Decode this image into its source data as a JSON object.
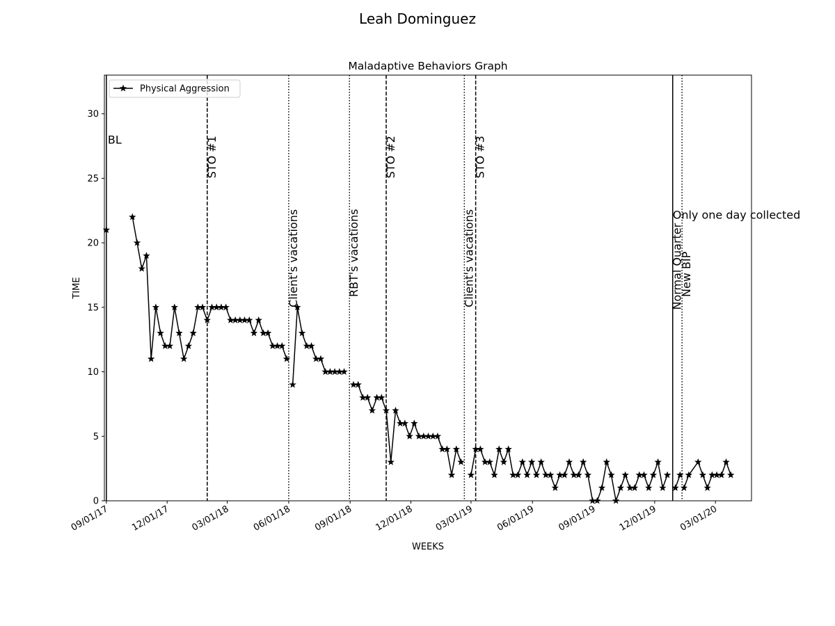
{
  "figure": {
    "suptitle": "Leah  Dominguez"
  },
  "chart_data": {
    "type": "line",
    "title": "Maladaptive Behaviors Graph",
    "xlabel": "WEEKS",
    "ylabel": "TIME",
    "xlim": [
      "2017-08-29",
      "2020-04-24"
    ],
    "ylim": [
      0,
      33
    ],
    "y_ticks": [
      0,
      5,
      10,
      15,
      20,
      25,
      30
    ],
    "x_ticks": [
      {
        "date": "2017-09-01",
        "label": "09/01/17"
      },
      {
        "date": "2017-12-01",
        "label": "12/01/17"
      },
      {
        "date": "2018-03-01",
        "label": "03/01/18"
      },
      {
        "date": "2018-06-01",
        "label": "06/01/18"
      },
      {
        "date": "2018-09-01",
        "label": "09/01/18"
      },
      {
        "date": "2018-12-01",
        "label": "12/01/18"
      },
      {
        "date": "2019-03-01",
        "label": "03/01/19"
      },
      {
        "date": "2019-06-01",
        "label": "06/01/19"
      },
      {
        "date": "2019-09-01",
        "label": "09/01/19"
      },
      {
        "date": "2019-12-01",
        "label": "12/01/19"
      },
      {
        "date": "2020-03-01",
        "label": "03/01/20"
      }
    ],
    "grid": false,
    "legend_position": "top-left",
    "series": [
      {
        "name": "Physical Aggression",
        "color": "#000000",
        "marker": "star",
        "segments": [
          [
            [
              "2017-09-01",
              21
            ]
          ],
          [
            [
              "2017-10-10",
              22
            ],
            [
              "2017-10-17",
              20
            ],
            [
              "2017-10-24",
              18
            ],
            [
              "2017-10-31",
              19
            ],
            [
              "2017-11-07",
              11
            ],
            [
              "2017-11-14",
              15
            ],
            [
              "2017-11-21",
              13
            ],
            [
              "2017-11-28",
              12
            ],
            [
              "2017-12-05",
              12
            ],
            [
              "2017-12-12",
              15
            ],
            [
              "2017-12-19",
              13
            ],
            [
              "2017-12-26",
              11
            ],
            [
              "2018-01-02",
              12
            ],
            [
              "2018-01-09",
              13
            ],
            [
              "2018-01-16",
              15
            ],
            [
              "2018-01-23",
              15
            ],
            [
              "2018-01-30",
              14
            ],
            [
              "2018-02-06",
              15
            ],
            [
              "2018-02-13",
              15
            ],
            [
              "2018-02-20",
              15
            ],
            [
              "2018-02-27",
              15
            ],
            [
              "2018-03-06",
              14
            ],
            [
              "2018-03-13",
              14
            ],
            [
              "2018-03-20",
              14
            ],
            [
              "2018-03-27",
              14
            ],
            [
              "2018-04-03",
              14
            ],
            [
              "2018-04-10",
              13
            ],
            [
              "2018-04-17",
              14
            ],
            [
              "2018-04-24",
              13
            ],
            [
              "2018-05-01",
              13
            ],
            [
              "2018-05-08",
              12
            ],
            [
              "2018-05-15",
              12
            ],
            [
              "2018-05-22",
              12
            ],
            [
              "2018-05-29",
              11
            ]
          ],
          [
            [
              "2018-06-07",
              9
            ],
            [
              "2018-06-14",
              15
            ],
            [
              "2018-06-21",
              13
            ],
            [
              "2018-06-28",
              12
            ],
            [
              "2018-07-05",
              12
            ],
            [
              "2018-07-12",
              11
            ],
            [
              "2018-07-19",
              11
            ],
            [
              "2018-07-26",
              10
            ],
            [
              "2018-08-02",
              10
            ],
            [
              "2018-08-09",
              10
            ],
            [
              "2018-08-16",
              10
            ],
            [
              "2018-08-23",
              10
            ]
          ],
          [
            [
              "2018-09-06",
              9
            ],
            [
              "2018-09-13",
              9
            ],
            [
              "2018-09-20",
              8
            ],
            [
              "2018-09-27",
              8
            ],
            [
              "2018-10-04",
              7
            ],
            [
              "2018-10-11",
              8
            ],
            [
              "2018-10-18",
              8
            ],
            [
              "2018-10-25",
              7
            ],
            [
              "2018-11-01",
              3
            ],
            [
              "2018-11-08",
              7
            ],
            [
              "2018-11-15",
              6
            ],
            [
              "2018-11-22",
              6
            ],
            [
              "2018-11-29",
              5
            ],
            [
              "2018-12-06",
              6
            ],
            [
              "2018-12-13",
              5
            ],
            [
              "2018-12-20",
              5
            ],
            [
              "2018-12-27",
              5
            ],
            [
              "2019-01-03",
              5
            ],
            [
              "2019-01-10",
              5
            ],
            [
              "2019-01-17",
              4
            ],
            [
              "2019-01-24",
              4
            ],
            [
              "2019-01-31",
              2
            ],
            [
              "2019-02-07",
              4
            ],
            [
              "2019-02-14",
              3
            ]
          ],
          [
            [
              "2019-03-01",
              2
            ],
            [
              "2019-03-08",
              4
            ],
            [
              "2019-03-15",
              4
            ],
            [
              "2019-03-22",
              3
            ],
            [
              "2019-03-29",
              3
            ],
            [
              "2019-04-05",
              2
            ],
            [
              "2019-04-12",
              4
            ],
            [
              "2019-04-19",
              3
            ],
            [
              "2019-04-26",
              4
            ],
            [
              "2019-05-03",
              2
            ],
            [
              "2019-05-10",
              2
            ],
            [
              "2019-05-17",
              3
            ],
            [
              "2019-05-24",
              2
            ],
            [
              "2019-05-31",
              3
            ],
            [
              "2019-06-07",
              2
            ],
            [
              "2019-06-14",
              3
            ],
            [
              "2019-06-21",
              2
            ],
            [
              "2019-06-28",
              2
            ],
            [
              "2019-07-05",
              1
            ],
            [
              "2019-07-12",
              2
            ],
            [
              "2019-07-19",
              2
            ],
            [
              "2019-07-26",
              3
            ],
            [
              "2019-08-02",
              2
            ],
            [
              "2019-08-09",
              2
            ],
            [
              "2019-08-16",
              3
            ],
            [
              "2019-08-23",
              2
            ],
            [
              "2019-08-30",
              0
            ],
            [
              "2019-09-06",
              0
            ],
            [
              "2019-09-13",
              1
            ],
            [
              "2019-09-20",
              3
            ],
            [
              "2019-09-27",
              2
            ],
            [
              "2019-10-04",
              0
            ],
            [
              "2019-10-11",
              1
            ],
            [
              "2019-10-18",
              2
            ],
            [
              "2019-10-25",
              1
            ],
            [
              "2019-11-01",
              1
            ],
            [
              "2019-11-08",
              2
            ],
            [
              "2019-11-15",
              2
            ],
            [
              "2019-11-22",
              1
            ],
            [
              "2019-11-29",
              2
            ],
            [
              "2019-12-06",
              3
            ],
            [
              "2019-12-13",
              1
            ],
            [
              "2019-12-20",
              2
            ]
          ],
          [
            [
              "2020-01-01",
              1
            ],
            [
              "2020-01-08",
              2
            ]
          ],
          [
            [
              "2020-01-14",
              1
            ],
            [
              "2020-01-21",
              2
            ],
            [
              "2020-02-04",
              3
            ],
            [
              "2020-02-11",
              2
            ],
            [
              "2020-02-18",
              1
            ],
            [
              "2020-02-25",
              2
            ],
            [
              "2020-03-03",
              2
            ],
            [
              "2020-03-10",
              2
            ],
            [
              "2020-03-17",
              3
            ],
            [
              "2020-03-24",
              2
            ]
          ]
        ]
      }
    ],
    "phase_lines": [
      {
        "date": "2017-09-01",
        "style": "solid",
        "label": "BL",
        "label_orientation": "horizontal",
        "label_y": 28
      },
      {
        "date": "2018-01-30",
        "style": "dashed",
        "label": "STO #1",
        "label_orientation": "vertical",
        "label_y": 25
      },
      {
        "date": "2018-06-01",
        "style": "dotted",
        "label": "Client's vacations",
        "label_orientation": "vertical",
        "label_y": 15
      },
      {
        "date": "2018-08-31",
        "style": "dotted",
        "label": "RBT's vacations",
        "label_orientation": "vertical",
        "label_y": 15.8
      },
      {
        "date": "2018-10-25",
        "style": "dashed",
        "label": "STO #2",
        "label_orientation": "vertical",
        "label_y": 25
      },
      {
        "date": "2019-02-19",
        "style": "dotted",
        "label": "Client's vacations",
        "label_orientation": "vertical",
        "label_y": 15
      },
      {
        "date": "2019-03-08",
        "style": "dashed",
        "label": "STO #3",
        "label_orientation": "vertical",
        "label_y": 25
      },
      {
        "date": "2019-12-28",
        "style": "solid",
        "label": "Normal Quarter",
        "label_orientation": "vertical",
        "label_y": 14.8
      },
      {
        "date": "2020-01-11",
        "style": "dotted",
        "label": "New BIP",
        "label_orientation": "vertical",
        "label_y": 15.8
      }
    ],
    "annotations": [
      {
        "date": "2019-12-28",
        "y": 22.2,
        "text": "Only one day collected"
      }
    ]
  }
}
